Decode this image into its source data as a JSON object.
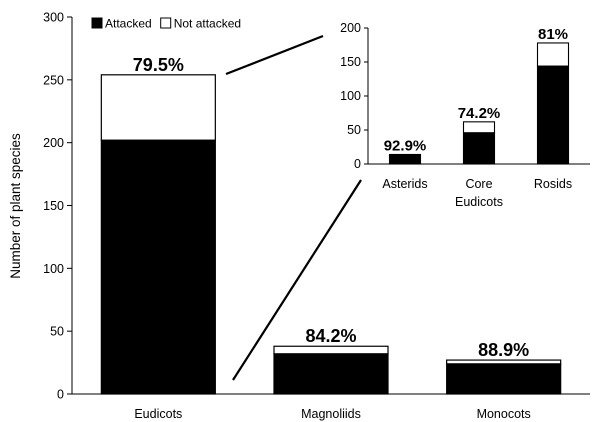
{
  "chart_data": [
    {
      "type": "bar",
      "stacked": true,
      "categories": [
        "Eudicots",
        "Magnoliids",
        "Monocots"
      ],
      "series": [
        {
          "name": "Attacked",
          "values": [
            202,
            32,
            24
          ],
          "color": "#000000"
        },
        {
          "name": "Not attacked",
          "values": [
            52,
            6,
            3
          ],
          "color": "#ffffff"
        }
      ],
      "bar_labels": [
        "79.5%",
        "84.2%",
        "88.9%"
      ],
      "ylabel": "Number of plant species",
      "ylim": [
        0,
        300
      ],
      "yticks": [
        "0",
        "50",
        "100",
        "150",
        "200",
        "250",
        "300"
      ],
      "legend_position": "top-left",
      "grid": false
    },
    {
      "type": "bar",
      "stacked": true,
      "inset": true,
      "categories": [
        "Asterids",
        "Core Eudicots",
        "Rosids"
      ],
      "category_lines": [
        [
          "Asterids"
        ],
        [
          "Core",
          "Eudicots"
        ],
        [
          "Rosids"
        ]
      ],
      "series": [
        {
          "name": "Attacked",
          "values": [
            13,
            46,
            144
          ],
          "color": "#000000"
        },
        {
          "name": "Not attacked",
          "values": [
            1,
            16,
            34
          ],
          "color": "#ffffff"
        }
      ],
      "bar_labels": [
        "92.9%",
        "74.2%",
        "81%"
      ],
      "ylim": [
        0,
        200
      ],
      "yticks": [
        "0",
        "50",
        "100",
        "150",
        "200"
      ],
      "grid": false
    }
  ]
}
